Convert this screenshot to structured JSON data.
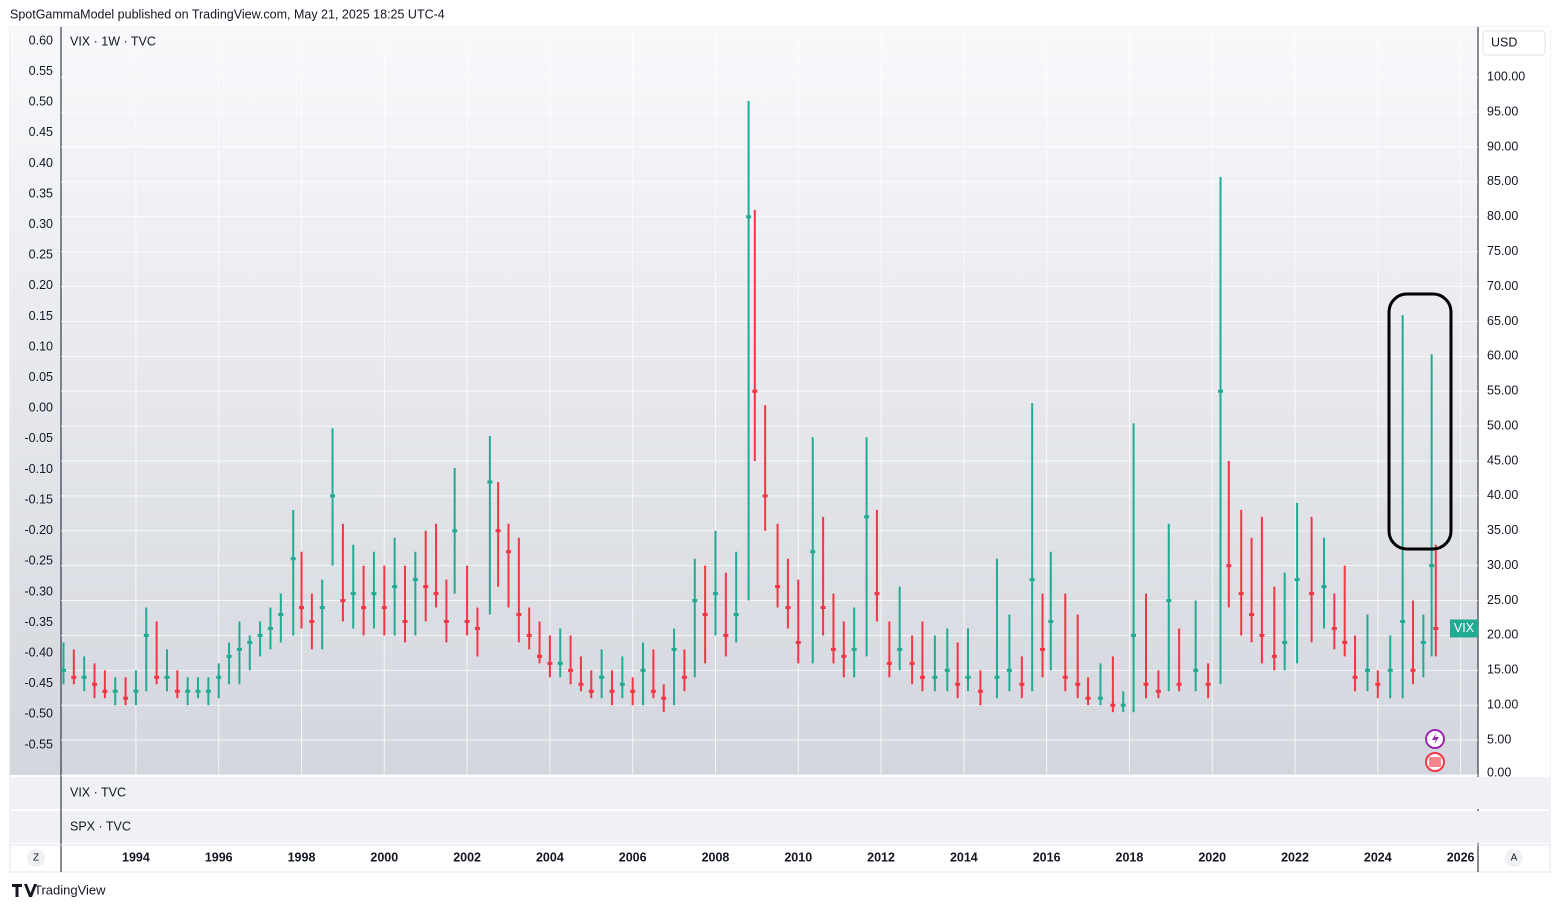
{
  "chart_data": {
    "type": "candlestick",
    "source_note": "SpotGammaModel published on TradingView.com, May 21, 2025 18:25 UTC-4",
    "title": "VIX · 1W · TVC",
    "y_unit": "USD",
    "last_label": "VIX",
    "panes": [
      "VIX · TVC",
      "SPX · TVC"
    ],
    "buttons": [
      "Z",
      "A"
    ],
    "brand": "TradingView",
    "up_color": "#22ab94",
    "down_color": "#f23645",
    "grid": true,
    "x": [
      1992.25,
      1992.5,
      1992.75,
      1993.0,
      1993.25,
      1993.5,
      1993.75,
      1994.0,
      1994.25,
      1994.5,
      1994.75,
      1995.0,
      1995.25,
      1995.5,
      1995.75,
      1996.0,
      1996.25,
      1996.5,
      1996.75,
      1997.0,
      1997.25,
      1997.5,
      1997.8,
      1998.0,
      1998.25,
      1998.5,
      1998.75,
      1999.0,
      1999.25,
      1999.5,
      1999.75,
      2000.0,
      2000.25,
      2000.5,
      2000.75,
      2001.0,
      2001.25,
      2001.5,
      2001.7,
      2002.0,
      2002.25,
      2002.55,
      2002.75,
      2003.0,
      2003.25,
      2003.5,
      2003.75,
      2004.0,
      2004.25,
      2004.5,
      2004.75,
      2005.0,
      2005.25,
      2005.5,
      2005.75,
      2006.0,
      2006.25,
      2006.5,
      2006.75,
      2007.0,
      2007.25,
      2007.5,
      2007.75,
      2008.0,
      2008.25,
      2008.5,
      2008.8,
      2008.95,
      2009.2,
      2009.5,
      2009.75,
      2010.0,
      2010.35,
      2010.6,
      2010.85,
      2011.1,
      2011.35,
      2011.65,
      2011.9,
      2012.2,
      2012.45,
      2012.75,
      2013.0,
      2013.3,
      2013.6,
      2013.85,
      2014.1,
      2014.4,
      2014.8,
      2015.1,
      2015.4,
      2015.65,
      2015.9,
      2016.1,
      2016.45,
      2016.75,
      2017.0,
      2017.3,
      2017.6,
      2017.85,
      2018.1,
      2018.4,
      2018.7,
      2018.95,
      2019.2,
      2019.6,
      2019.9,
      2020.2,
      2020.4,
      2020.7,
      2020.95,
      2021.2,
      2021.5,
      2021.75,
      2022.05,
      2022.4,
      2022.7,
      2022.95,
      2023.2,
      2023.45,
      2023.75,
      2024.0,
      2024.3,
      2024.6,
      2024.85,
      2025.1,
      2025.3,
      2025.4
    ],
    "high": [
      19,
      18,
      17,
      16,
      15,
      14,
      14,
      15,
      24,
      22,
      18,
      15,
      14,
      14,
      14,
      16,
      19,
      22,
      20,
      22,
      24,
      26,
      38,
      32,
      26,
      28,
      49.7,
      36,
      33,
      30,
      32,
      30,
      34,
      30,
      32,
      35,
      36,
      28,
      44,
      30,
      24,
      48.6,
      42,
      36,
      34,
      24,
      22,
      20,
      21,
      20,
      17,
      15,
      18,
      15,
      17,
      14,
      19,
      18,
      13,
      21,
      18,
      31,
      30,
      35,
      29,
      32,
      96.6,
      81,
      53,
      36,
      31,
      28,
      48.4,
      37,
      26,
      22,
      24,
      48.4,
      38,
      22,
      27,
      20,
      22,
      20,
      21,
      19,
      21,
      15,
      31,
      23,
      17,
      53.3,
      26,
      32,
      26,
      23,
      14,
      16,
      17,
      12,
      50.4,
      26,
      15,
      36,
      21,
      25,
      16,
      85.7,
      45,
      38,
      34,
      37,
      27,
      29,
      39,
      37,
      34,
      26,
      30,
      20,
      23,
      15,
      20,
      65.9,
      25,
      23,
      60.3,
      33
    ],
    "low": [
      13,
      13,
      12,
      11,
      11,
      10,
      10,
      10,
      12,
      13,
      12,
      11,
      10,
      11,
      10,
      11,
      13,
      13,
      15,
      17,
      18,
      19,
      20,
      21,
      18,
      18,
      30,
      22,
      21,
      20,
      21,
      20,
      20,
      19,
      20,
      22,
      24,
      19,
      26,
      20,
      17,
      23,
      27,
      24,
      19,
      18,
      16,
      14,
      14,
      13,
      12,
      11,
      11,
      10,
      11,
      10,
      10,
      11,
      9,
      10,
      12,
      14,
      16,
      20,
      17,
      19,
      25,
      45,
      35,
      24,
      21,
      16,
      16,
      20,
      16,
      14,
      14,
      17,
      22,
      14,
      15,
      13,
      12,
      12,
      12,
      11,
      12,
      10,
      11,
      12,
      11,
      12,
      14,
      15,
      12,
      11,
      10,
      10,
      9,
      9,
      9,
      11,
      11,
      12,
      12,
      12,
      11,
      13,
      24,
      20,
      19,
      16,
      15,
      15,
      16,
      19,
      21,
      18,
      17,
      12,
      12,
      11,
      11,
      11,
      13,
      14,
      17,
      17
    ],
    "close": [
      15,
      14,
      14,
      13,
      12,
      12,
      11,
      12,
      20,
      14,
      14,
      12,
      12,
      12,
      12,
      14,
      17,
      18,
      19,
      20,
      21,
      23,
      31,
      24,
      22,
      24,
      40,
      25,
      26,
      24,
      26,
      24,
      27,
      22,
      28,
      27,
      26,
      22,
      35,
      22,
      21,
      42,
      35,
      32,
      23,
      20,
      17,
      16,
      16,
      15,
      13,
      12,
      14,
      12,
      13,
      12,
      15,
      12,
      11,
      18,
      14,
      25,
      23,
      26,
      20,
      23,
      80,
      55,
      40,
      27,
      24,
      19,
      32,
      24,
      18,
      17,
      18,
      37,
      26,
      16,
      18,
      16,
      14,
      14,
      15,
      13,
      14,
      12,
      14,
      15,
      13,
      28,
      18,
      22,
      14,
      13,
      11,
      11,
      10,
      10,
      20,
      13,
      12,
      25,
      13,
      15,
      13,
      55,
      30,
      26,
      23,
      20,
      17,
      19,
      28,
      26,
      27,
      21,
      19,
      14,
      15,
      13,
      15,
      22,
      15,
      19,
      30,
      21
    ],
    "xlim": [
      1992.19,
      2026.42
    ],
    "xticks": [
      1994,
      1996,
      1998,
      2000,
      2002,
      2004,
      2006,
      2008,
      2010,
      2012,
      2014,
      2016,
      2018,
      2020,
      2022,
      2024,
      2026
    ],
    "ylim": [
      0,
      107.2
    ],
    "yticks": [
      {
        "value": 0,
        "label": "0.00"
      },
      {
        "value": 5,
        "label": "5.00"
      },
      {
        "value": 10,
        "label": "10.00"
      },
      {
        "value": 15,
        "label": "15.00"
      },
      {
        "value": 20,
        "label": "20.00"
      },
      {
        "value": 25,
        "label": "25.00"
      },
      {
        "value": 30,
        "label": "30.00"
      },
      {
        "value": 35,
        "label": "35.00"
      },
      {
        "value": 40,
        "label": "40.00"
      },
      {
        "value": 45,
        "label": "45.00"
      },
      {
        "value": 50,
        "label": "50.00"
      },
      {
        "value": 55,
        "label": "55.00"
      },
      {
        "value": 60,
        "label": "60.00"
      },
      {
        "value": 65,
        "label": "65.00"
      },
      {
        "value": 70,
        "label": "70.00"
      },
      {
        "value": 75,
        "label": "75.00"
      },
      {
        "value": 80,
        "label": "80.00"
      },
      {
        "value": 85,
        "label": "85.00"
      },
      {
        "value": 90,
        "label": "90.00"
      },
      {
        "value": 95,
        "label": "95.00"
      },
      {
        "value": 100,
        "label": "100.00"
      }
    ],
    "y2lim": [
      -0.599,
      0.623
    ],
    "y2ticks": [
      {
        "value": 0.6,
        "label": "0.60"
      },
      {
        "value": 0.55,
        "label": "0.55"
      },
      {
        "value": 0.5,
        "label": "0.50"
      },
      {
        "value": 0.45,
        "label": "0.45"
      },
      {
        "value": 0.4,
        "label": "0.40"
      },
      {
        "value": 0.35,
        "label": "0.35"
      },
      {
        "value": 0.3,
        "label": "0.30"
      },
      {
        "value": 0.25,
        "label": "0.25"
      },
      {
        "value": 0.2,
        "label": "0.20"
      },
      {
        "value": 0.15,
        "label": "0.15"
      },
      {
        "value": 0.1,
        "label": "0.10"
      },
      {
        "value": 0.05,
        "label": "0.05"
      },
      {
        "value": 0,
        "label": "0.00"
      },
      {
        "value": -0.05,
        "label": "-0.05"
      },
      {
        "value": -0.1,
        "label": "-0.10"
      },
      {
        "value": -0.15,
        "label": "-0.15"
      },
      {
        "value": -0.2,
        "label": "-0.20"
      },
      {
        "value": -0.25,
        "label": "-0.25"
      },
      {
        "value": -0.3,
        "label": "-0.30"
      },
      {
        "value": -0.35,
        "label": "-0.35"
      },
      {
        "value": -0.4,
        "label": "-0.40"
      },
      {
        "value": -0.45,
        "label": "-0.45"
      },
      {
        "value": -0.5,
        "label": "-0.50"
      },
      {
        "value": -0.55,
        "label": "-0.55"
      }
    ]
  }
}
